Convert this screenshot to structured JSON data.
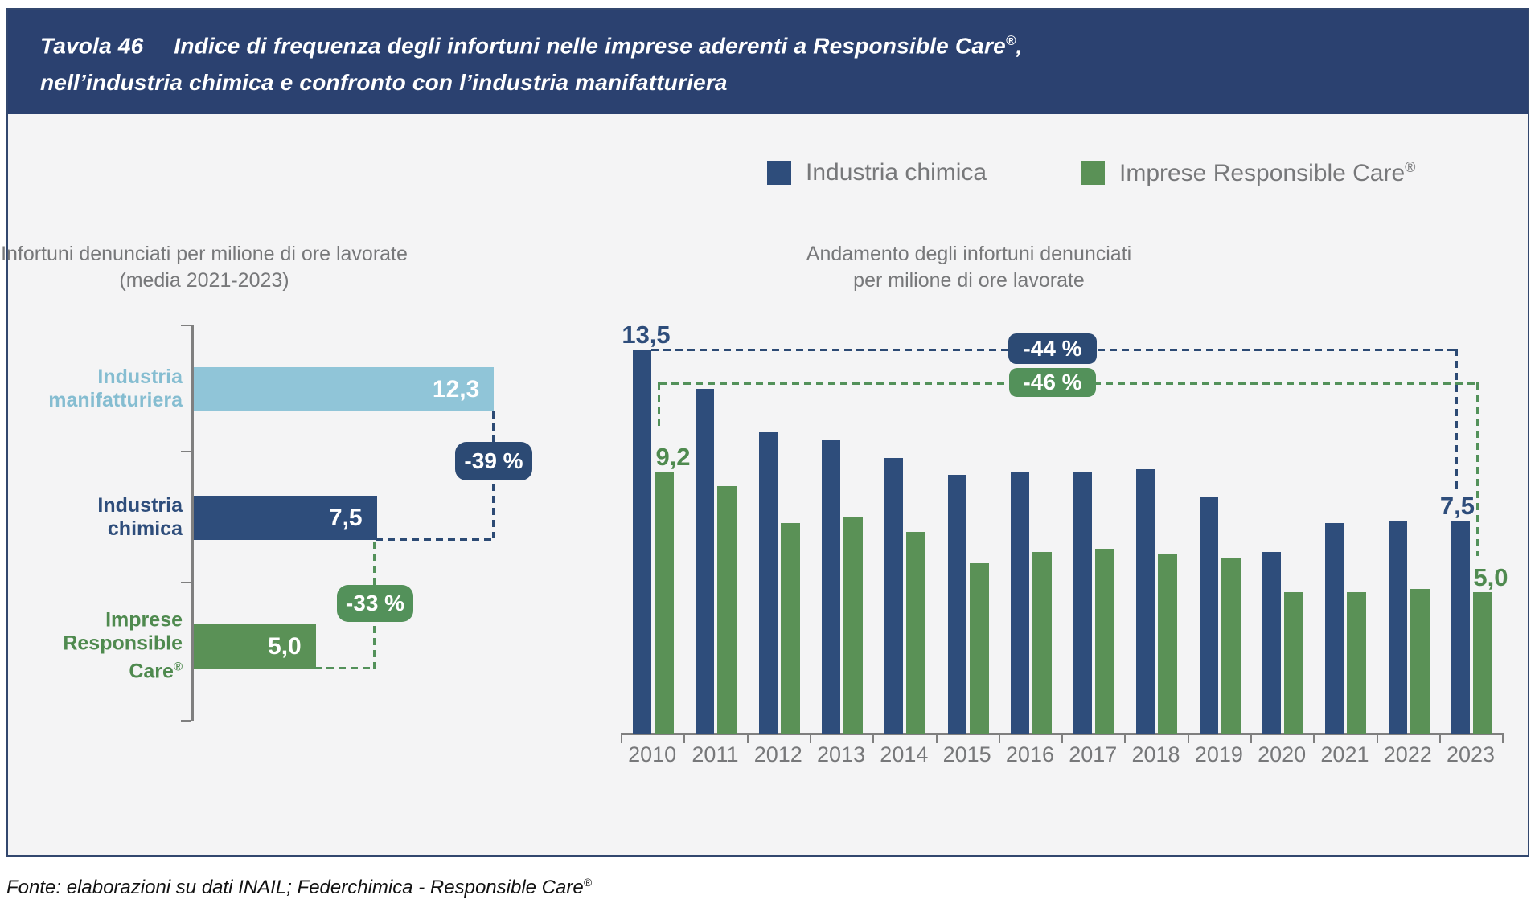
{
  "header": {
    "table_label": "Tavola 46",
    "title_main": "Indice di frequenza degli infortuni nelle imprese aderenti a Responsible Care",
    "title_reg": "®",
    "title_suffix": ",",
    "title_line2": "nell’industria chimica e confronto con l’industria manifatturiera"
  },
  "legend": {
    "items": [
      {
        "label": "Industria chimica",
        "reg": "",
        "color": "#2e4d7b"
      },
      {
        "label": "Imprese Responsible Care",
        "reg": "®",
        "color": "#5a9156"
      }
    ]
  },
  "chart_data": [
    {
      "type": "bar",
      "orientation": "horizontal",
      "title": "Infortuni denunciati per milione di ore lavorate",
      "subtitle": "(media 2021-2023)",
      "categories": [
        {
          "lines": [
            "Industria",
            "manifatturiera"
          ],
          "reg": "",
          "color": "#85bdd1"
        },
        {
          "lines": [
            "Industria",
            "chimica"
          ],
          "reg": "",
          "color": "#2e4d7b"
        },
        {
          "lines": [
            "Imprese",
            "Responsible",
            "Care"
          ],
          "reg": "®",
          "color": "#4f8a4f"
        }
      ],
      "values": [
        12.3,
        7.5,
        5.0
      ],
      "value_labels": [
        "12,3",
        "7,5",
        "5,0"
      ],
      "bar_colors": [
        "#90c5d8",
        "#2e4d7b",
        "#5a9156"
      ],
      "xlim": [
        0,
        14
      ],
      "grid": false,
      "annotations": [
        {
          "label": "-39 %",
          "color": "#2c4a74"
        },
        {
          "label": "-33 %",
          "color": "#53915a"
        }
      ]
    },
    {
      "type": "bar",
      "orientation": "vertical",
      "grouped": true,
      "title": "Andamento degli infortuni denunciati",
      "subtitle": "per milione di ore lavorate",
      "categories": [
        "2010",
        "2011",
        "2012",
        "2013",
        "2014",
        "2015",
        "2016",
        "2017",
        "2018",
        "2019",
        "2020",
        "2021",
        "2022",
        "2023"
      ],
      "series": [
        {
          "name": "Industria chimica",
          "color": "#2e4d7b",
          "values": [
            13.5,
            12.1,
            10.6,
            10.3,
            9.7,
            9.1,
            9.2,
            9.2,
            9.3,
            8.3,
            6.4,
            7.4,
            7.5,
            7.5
          ]
        },
        {
          "name": "Imprese Responsible Care®",
          "color": "#5a9156",
          "values": [
            9.2,
            8.7,
            7.4,
            7.6,
            7.1,
            6.0,
            6.4,
            6.5,
            6.3,
            6.2,
            5.0,
            5.0,
            5.1,
            5.0
          ]
        }
      ],
      "point_labels": [
        {
          "series": 0,
          "category": "2010",
          "text": "13,5"
        },
        {
          "series": 1,
          "category": "2010",
          "text": "9,2"
        },
        {
          "series": 0,
          "category": "2023",
          "text": "7,5"
        },
        {
          "series": 1,
          "category": "2023",
          "text": "5,0"
        }
      ],
      "ylim": [
        0,
        14
      ],
      "grid": false,
      "legend_position": "top-right",
      "annotations": [
        {
          "label": "-44 %",
          "color": "#2c4a74"
        },
        {
          "label": "-46 %",
          "color": "#53915a"
        }
      ]
    }
  ],
  "footer": {
    "text": "Fonte: elaborazioni su dati INAIL; Federchimica - Responsible Care",
    "reg": "®"
  }
}
